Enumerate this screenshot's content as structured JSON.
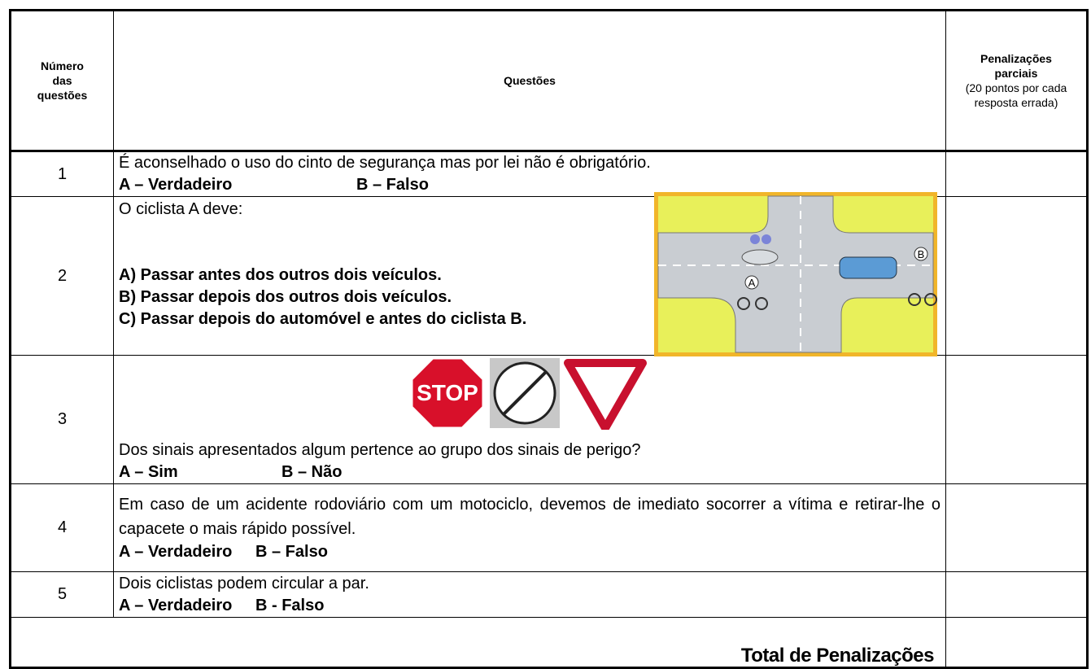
{
  "table": {
    "header": {
      "number": "Número das questões",
      "questions": "Questões",
      "penalties_title": "Penalizações parciais",
      "penalties_note": "(20 pontos por cada resposta errada)"
    },
    "rows": [
      {
        "number": 1,
        "question": "É aconselhado o uso do cinto de segurança mas por lei não é obrigatório.",
        "options": [
          "A – Verdadeiro",
          "B – Falso"
        ]
      },
      {
        "number": 2,
        "question": "O ciclista A deve:",
        "options": [
          "A) Passar antes dos outros dois veículos.",
          "B) Passar depois dos outros dois veículos.",
          "C) Passar depois do automóvel e antes do ciclista B."
        ],
        "figure_labels": [
          "A",
          "B"
        ]
      },
      {
        "number": 3,
        "sign_text": "STOP",
        "question": "Dos sinais apresentados algum pertence ao grupo dos sinais de perigo?",
        "options": [
          "A – Sim",
          "B – Não"
        ]
      },
      {
        "number": 4,
        "question": "Em caso de um acidente rodoviário com um motociclo, devemos de imediato socorrer a vítima e retirar-lhe o capacete o mais rápido possível.",
        "options": [
          "A – Verdadeiro",
          "B – Falso"
        ]
      },
      {
        "number": 5,
        "question": "Dois ciclistas podem circular a par.",
        "options": [
          "A – Verdadeiro",
          "B - Falso"
        ]
      }
    ],
    "total": "Total de Penalizações"
  }
}
